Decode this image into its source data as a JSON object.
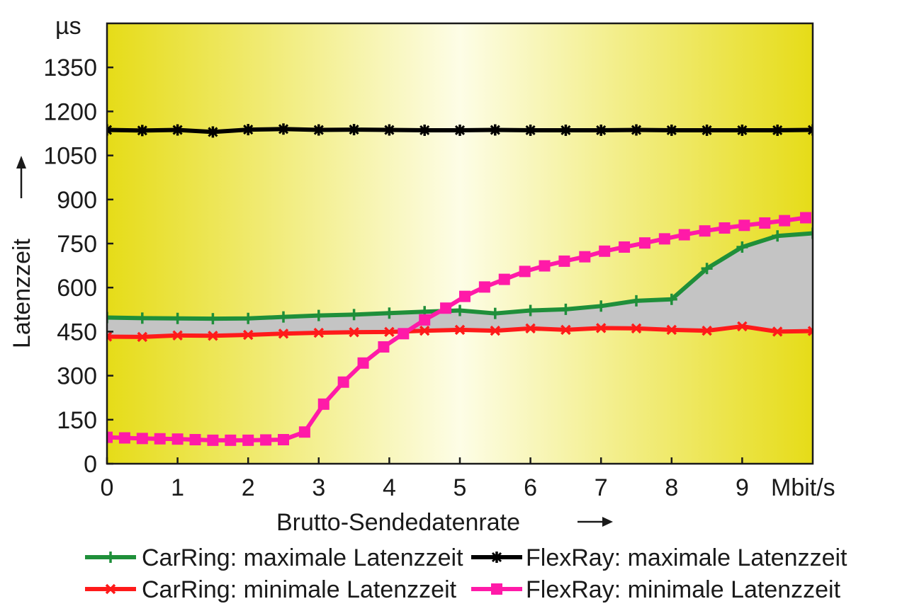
{
  "chart_data": {
    "type": "line",
    "title": "",
    "xlabel": "Brutto-Sendedatenrate",
    "ylabel": "Latenzzeit",
    "x_unit": "Mbit/s",
    "y_unit": "µs",
    "xlim": [
      0,
      10
    ],
    "ylim": [
      0,
      1500
    ],
    "x_ticks": [
      0,
      1,
      2,
      3,
      4,
      5,
      6,
      7,
      8,
      9
    ],
    "y_ticks": [
      0,
      150,
      300,
      450,
      600,
      750,
      900,
      1050,
      1200,
      1350
    ],
    "grid": false,
    "legend_position": "bottom",
    "shaded_region": "between CarRing minimale and maximale Latenzzeit",
    "series": [
      {
        "name": "CarRing: maximale Latenzzeit",
        "color": "#1f8f3a",
        "marker": "plus",
        "x": [
          0,
          0.5,
          1,
          1.5,
          2,
          2.5,
          3,
          3.5,
          4,
          4.5,
          5,
          5.5,
          6,
          6.5,
          7,
          7.5,
          8,
          8.5,
          9,
          9.5,
          10
        ],
        "y": [
          498,
          496,
          495,
          494,
          495,
          500,
          505,
          508,
          513,
          518,
          522,
          512,
          522,
          526,
          537,
          555,
          560,
          665,
          738,
          776,
          785
        ]
      },
      {
        "name": "CarRing: minimale Latenzzeit",
        "color": "#ff1a1a",
        "marker": "x",
        "x": [
          0,
          0.5,
          1,
          1.5,
          2,
          2.5,
          3,
          3.5,
          4,
          4.5,
          5,
          5.5,
          6,
          6.5,
          7,
          7.5,
          8,
          8.5,
          9,
          9.5,
          10
        ],
        "y": [
          433,
          432,
          437,
          436,
          439,
          443,
          446,
          448,
          449,
          453,
          456,
          453,
          461,
          456,
          462,
          461,
          456,
          453,
          468,
          450,
          452
        ]
      },
      {
        "name": "FlexRay: maximale Latenzzeit",
        "color": "#000000",
        "marker": "star",
        "x": [
          0,
          0.5,
          1,
          1.5,
          2,
          2.5,
          3,
          3.5,
          4,
          4.5,
          5,
          5.5,
          6,
          6.5,
          7,
          7.5,
          8,
          8.5,
          9,
          9.5,
          10
        ],
        "y": [
          1137,
          1135,
          1137,
          1130,
          1138,
          1140,
          1137,
          1138,
          1137,
          1136,
          1136,
          1137,
          1136,
          1136,
          1136,
          1137,
          1136,
          1136,
          1136,
          1136,
          1137
        ]
      },
      {
        "name": "FlexRay: minimale Latenzzeit",
        "color": "#ff1aa8",
        "marker": "square",
        "x": [
          0,
          0.25,
          0.5,
          0.75,
          1,
          1.25,
          1.5,
          1.75,
          2,
          2.25,
          2.5,
          2.8,
          3.07,
          3.35,
          3.63,
          3.92,
          4.2,
          4.5,
          4.8,
          5.07,
          5.35,
          5.63,
          5.92,
          6.2,
          6.48,
          6.77,
          7.05,
          7.33,
          7.62,
          7.9,
          8.18,
          8.47,
          8.75,
          9.03,
          9.32,
          9.6,
          9.9
        ],
        "y": [
          90,
          88,
          86,
          85,
          84,
          82,
          80,
          80,
          80,
          81,
          82,
          108,
          203,
          278,
          343,
          398,
          443,
          490,
          530,
          570,
          602,
          628,
          655,
          674,
          690,
          705,
          724,
          738,
          752,
          766,
          780,
          793,
          803,
          812,
          820,
          828,
          838
        ]
      }
    ]
  }
}
